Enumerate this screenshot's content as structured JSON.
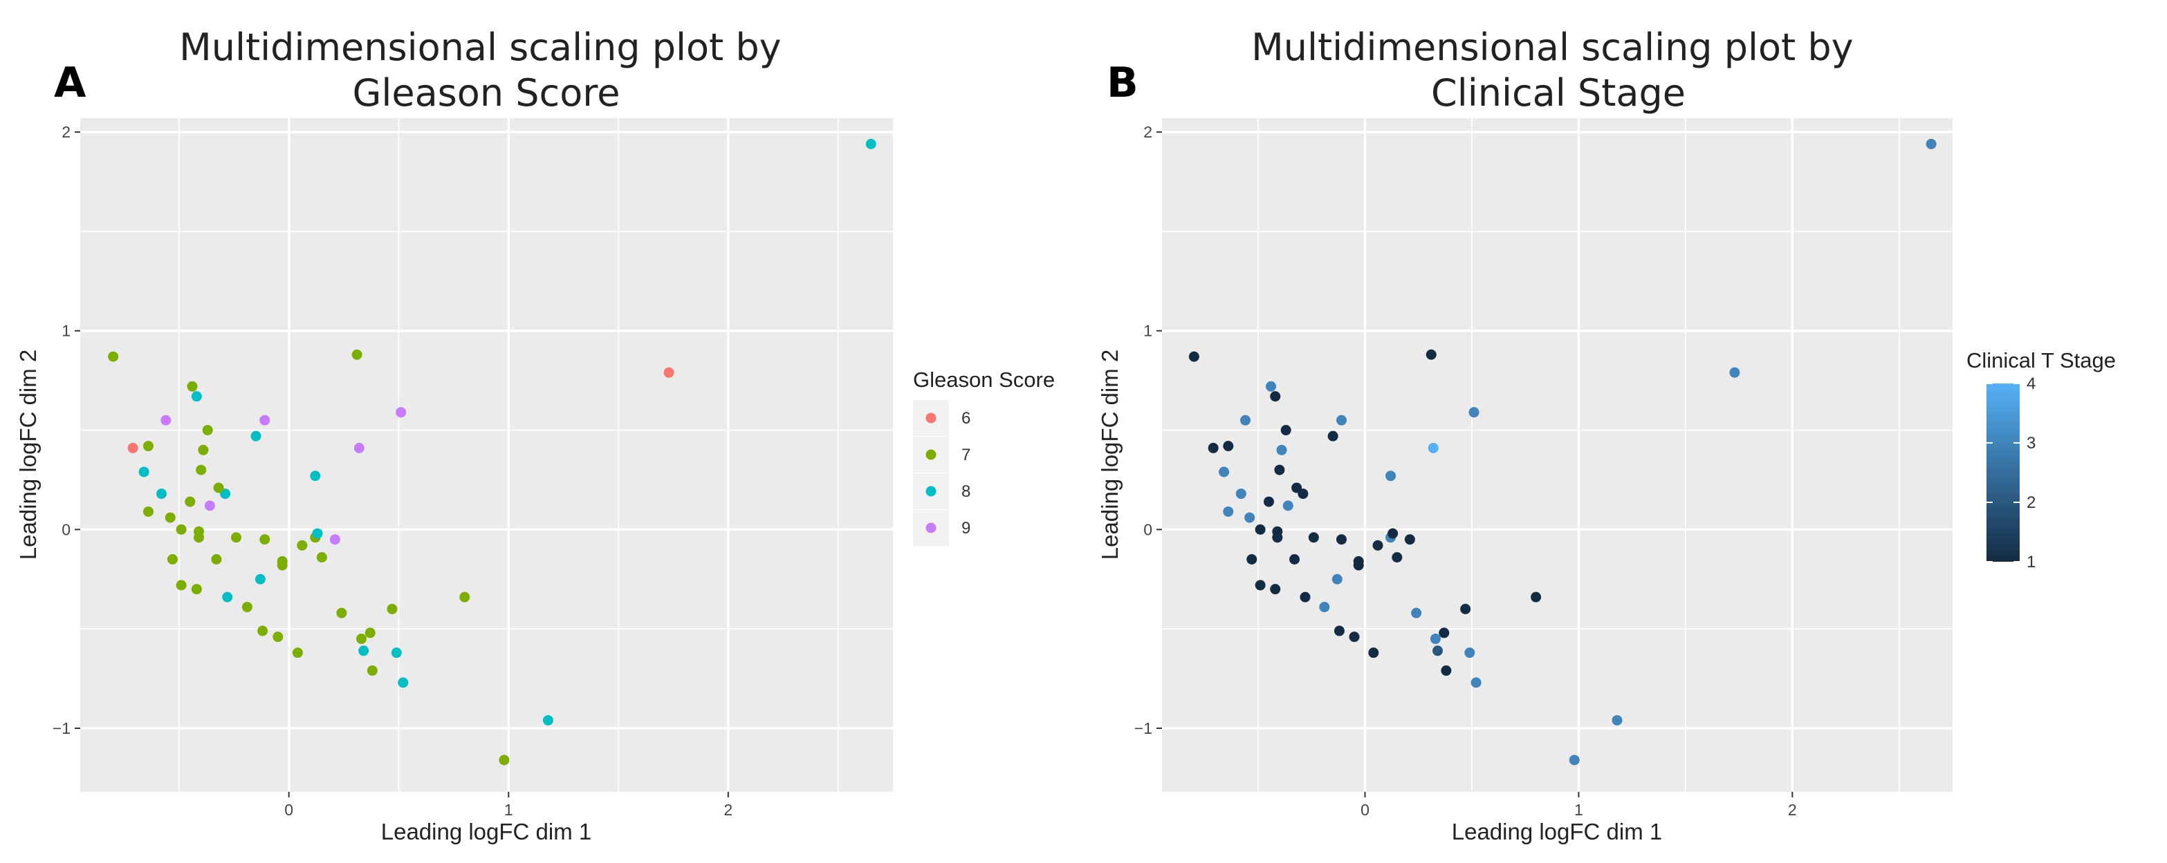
{
  "panels": [
    {
      "letter": "A",
      "title": "Multidimensional scaling plot by\nGleason Score"
    },
    {
      "letter": "B",
      "title": "Multidimensional scaling plot by\nClinical Stage"
    }
  ],
  "colors": {
    "panel_bg": "#ebebeb",
    "grid": "#ffffff",
    "gleason_6": "#F8766D",
    "gleason_7": "#7CAE00",
    "gleason_8": "#00BFC4",
    "gleason_9": "#C77CFF",
    "stage_low": "#132B43",
    "stage_high": "#56B1F7"
  },
  "chart_data": [
    {
      "type": "scatter",
      "title": "Multidimensional scaling plot by Gleason Score",
      "xlabel": "Leading logFC dim 1",
      "ylabel": "Leading logFC dim 2",
      "xlim": [
        -0.95,
        2.75
      ],
      "ylim": [
        -1.32,
        2.07
      ],
      "xticks": [
        0,
        1,
        2
      ],
      "yticks": [
        -1,
        0,
        1,
        2
      ],
      "xtick_labels": [
        "0",
        "1",
        "2"
      ],
      "ytick_labels": [
        "−1",
        "0",
        "1",
        "2"
      ],
      "grid": true,
      "legend": {
        "title": "Gleason Score",
        "position": "right",
        "categories": [
          "6",
          "7",
          "8",
          "9"
        ]
      },
      "points": [
        {
          "x": 2.65,
          "y": 1.94,
          "gleason": "8"
        },
        {
          "x": 1.73,
          "y": 0.79,
          "gleason": "6"
        },
        {
          "x": 1.18,
          "y": -0.96,
          "gleason": "8"
        },
        {
          "x": 0.98,
          "y": -1.16,
          "gleason": "7"
        },
        {
          "x": 0.8,
          "y": -0.34,
          "gleason": "7"
        },
        {
          "x": 0.51,
          "y": 0.59,
          "gleason": "9"
        },
        {
          "x": 0.52,
          "y": -0.77,
          "gleason": "8"
        },
        {
          "x": 0.49,
          "y": -0.62,
          "gleason": "8"
        },
        {
          "x": 0.47,
          "y": -0.4,
          "gleason": "7"
        },
        {
          "x": 0.38,
          "y": -0.71,
          "gleason": "7"
        },
        {
          "x": 0.37,
          "y": -0.52,
          "gleason": "7"
        },
        {
          "x": 0.33,
          "y": -0.55,
          "gleason": "7"
        },
        {
          "x": 0.34,
          "y": -0.61,
          "gleason": "8"
        },
        {
          "x": 0.32,
          "y": 0.41,
          "gleason": "9"
        },
        {
          "x": 0.31,
          "y": 0.88,
          "gleason": "7"
        },
        {
          "x": 0.24,
          "y": -0.42,
          "gleason": "7"
        },
        {
          "x": 0.21,
          "y": -0.05,
          "gleason": "9"
        },
        {
          "x": 0.15,
          "y": -0.14,
          "gleason": "7"
        },
        {
          "x": 0.12,
          "y": 0.27,
          "gleason": "8"
        },
        {
          "x": 0.12,
          "y": -0.04,
          "gleason": "7"
        },
        {
          "x": 0.13,
          "y": -0.02,
          "gleason": "8"
        },
        {
          "x": 0.06,
          "y": -0.08,
          "gleason": "7"
        },
        {
          "x": 0.04,
          "y": -0.62,
          "gleason": "7"
        },
        {
          "x": -0.03,
          "y": -0.18,
          "gleason": "7"
        },
        {
          "x": -0.03,
          "y": -0.16,
          "gleason": "7"
        },
        {
          "x": -0.05,
          "y": -0.54,
          "gleason": "7"
        },
        {
          "x": -0.11,
          "y": -0.05,
          "gleason": "7"
        },
        {
          "x": -0.11,
          "y": 0.55,
          "gleason": "9"
        },
        {
          "x": -0.12,
          "y": -0.51,
          "gleason": "7"
        },
        {
          "x": -0.13,
          "y": -0.25,
          "gleason": "8"
        },
        {
          "x": -0.15,
          "y": 0.47,
          "gleason": "8"
        },
        {
          "x": -0.19,
          "y": -0.39,
          "gleason": "7"
        },
        {
          "x": -0.24,
          "y": -0.04,
          "gleason": "7"
        },
        {
          "x": -0.28,
          "y": -0.34,
          "gleason": "8"
        },
        {
          "x": -0.29,
          "y": 0.18,
          "gleason": "8"
        },
        {
          "x": -0.32,
          "y": 0.21,
          "gleason": "7"
        },
        {
          "x": -0.33,
          "y": -0.15,
          "gleason": "7"
        },
        {
          "x": -0.36,
          "y": 0.12,
          "gleason": "9"
        },
        {
          "x": -0.37,
          "y": 0.5,
          "gleason": "7"
        },
        {
          "x": -0.39,
          "y": 0.4,
          "gleason": "7"
        },
        {
          "x": -0.4,
          "y": 0.3,
          "gleason": "7"
        },
        {
          "x": -0.41,
          "y": -0.01,
          "gleason": "7"
        },
        {
          "x": -0.41,
          "y": -0.04,
          "gleason": "7"
        },
        {
          "x": -0.42,
          "y": -0.3,
          "gleason": "7"
        },
        {
          "x": -0.42,
          "y": 0.67,
          "gleason": "8"
        },
        {
          "x": -0.44,
          "y": 0.72,
          "gleason": "7"
        },
        {
          "x": -0.45,
          "y": 0.14,
          "gleason": "7"
        },
        {
          "x": -0.49,
          "y": 0.0,
          "gleason": "7"
        },
        {
          "x": -0.49,
          "y": -0.28,
          "gleason": "7"
        },
        {
          "x": -0.53,
          "y": -0.15,
          "gleason": "7"
        },
        {
          "x": -0.54,
          "y": 0.06,
          "gleason": "7"
        },
        {
          "x": -0.56,
          "y": 0.55,
          "gleason": "9"
        },
        {
          "x": -0.58,
          "y": 0.18,
          "gleason": "8"
        },
        {
          "x": -0.64,
          "y": 0.42,
          "gleason": "7"
        },
        {
          "x": -0.64,
          "y": 0.09,
          "gleason": "7"
        },
        {
          "x": -0.66,
          "y": 0.29,
          "gleason": "8"
        },
        {
          "x": -0.71,
          "y": 0.41,
          "gleason": "6"
        },
        {
          "x": -0.8,
          "y": 0.87,
          "gleason": "7"
        }
      ]
    },
    {
      "type": "scatter",
      "title": "Multidimensional scaling plot by Clinical Stage",
      "xlabel": "Leading logFC dim 1",
      "ylabel": "Leading logFC dim 2",
      "xlim": [
        -0.95,
        2.75
      ],
      "ylim": [
        -1.32,
        2.07
      ],
      "xticks": [
        0,
        1,
        2
      ],
      "yticks": [
        -1,
        0,
        1,
        2
      ],
      "xtick_labels": [
        "0",
        "1",
        "2"
      ],
      "ytick_labels": [
        "−1",
        "0",
        "1",
        "2"
      ],
      "grid": true,
      "legend": {
        "title": "Clinical T Stage",
        "position": "right",
        "type": "colorbar",
        "range": [
          1,
          4
        ],
        "ticks": [
          "1",
          "2",
          "3",
          "4"
        ]
      },
      "points": [
        {
          "x": 2.65,
          "y": 1.94,
          "stage": 3
        },
        {
          "x": 1.73,
          "y": 0.79,
          "stage": 3
        },
        {
          "x": 1.18,
          "y": -0.96,
          "stage": 3
        },
        {
          "x": 0.98,
          "y": -1.16,
          "stage": 3
        },
        {
          "x": 0.8,
          "y": -0.34,
          "stage": 1
        },
        {
          "x": 0.51,
          "y": 0.59,
          "stage": 3
        },
        {
          "x": 0.52,
          "y": -0.77,
          "stage": 3
        },
        {
          "x": 0.49,
          "y": -0.62,
          "stage": 3
        },
        {
          "x": 0.47,
          "y": -0.4,
          "stage": 1
        },
        {
          "x": 0.38,
          "y": -0.71,
          "stage": 1
        },
        {
          "x": 0.37,
          "y": -0.52,
          "stage": 1
        },
        {
          "x": 0.33,
          "y": -0.55,
          "stage": 3
        },
        {
          "x": 0.34,
          "y": -0.61,
          "stage": 2
        },
        {
          "x": 0.32,
          "y": 0.41,
          "stage": 4
        },
        {
          "x": 0.31,
          "y": 0.88,
          "stage": 1
        },
        {
          "x": 0.24,
          "y": -0.42,
          "stage": 3
        },
        {
          "x": 0.21,
          "y": -0.05,
          "stage": 1
        },
        {
          "x": 0.15,
          "y": -0.14,
          "stage": 1
        },
        {
          "x": 0.12,
          "y": 0.27,
          "stage": 3
        },
        {
          "x": 0.12,
          "y": -0.04,
          "stage": 3
        },
        {
          "x": 0.13,
          "y": -0.02,
          "stage": 1
        },
        {
          "x": 0.06,
          "y": -0.08,
          "stage": 1
        },
        {
          "x": 0.04,
          "y": -0.62,
          "stage": 1
        },
        {
          "x": -0.03,
          "y": -0.18,
          "stage": 1
        },
        {
          "x": -0.03,
          "y": -0.16,
          "stage": 1
        },
        {
          "x": -0.05,
          "y": -0.54,
          "stage": 1
        },
        {
          "x": -0.11,
          "y": -0.05,
          "stage": 1
        },
        {
          "x": -0.11,
          "y": 0.55,
          "stage": 3
        },
        {
          "x": -0.12,
          "y": -0.51,
          "stage": 1
        },
        {
          "x": -0.13,
          "y": -0.25,
          "stage": 3
        },
        {
          "x": -0.15,
          "y": 0.47,
          "stage": 1
        },
        {
          "x": -0.19,
          "y": -0.39,
          "stage": 3
        },
        {
          "x": -0.24,
          "y": -0.04,
          "stage": 1
        },
        {
          "x": -0.28,
          "y": -0.34,
          "stage": 1
        },
        {
          "x": -0.29,
          "y": 0.18,
          "stage": 1
        },
        {
          "x": -0.32,
          "y": 0.21,
          "stage": 1
        },
        {
          "x": -0.33,
          "y": -0.15,
          "stage": 1
        },
        {
          "x": -0.36,
          "y": 0.12,
          "stage": 3
        },
        {
          "x": -0.37,
          "y": 0.5,
          "stage": 1
        },
        {
          "x": -0.39,
          "y": 0.4,
          "stage": 3
        },
        {
          "x": -0.4,
          "y": 0.3,
          "stage": 1
        },
        {
          "x": -0.41,
          "y": -0.01,
          "stage": 1
        },
        {
          "x": -0.41,
          "y": -0.04,
          "stage": 1
        },
        {
          "x": -0.42,
          "y": -0.3,
          "stage": 1
        },
        {
          "x": -0.42,
          "y": 0.67,
          "stage": 1
        },
        {
          "x": -0.44,
          "y": 0.72,
          "stage": 3
        },
        {
          "x": -0.45,
          "y": 0.14,
          "stage": 1
        },
        {
          "x": -0.49,
          "y": 0.0,
          "stage": 1
        },
        {
          "x": -0.49,
          "y": -0.28,
          "stage": 1
        },
        {
          "x": -0.53,
          "y": -0.15,
          "stage": 1
        },
        {
          "x": -0.54,
          "y": 0.06,
          "stage": 3
        },
        {
          "x": -0.56,
          "y": 0.55,
          "stage": 3
        },
        {
          "x": -0.58,
          "y": 0.18,
          "stage": 3
        },
        {
          "x": -0.64,
          "y": 0.42,
          "stage": 1
        },
        {
          "x": -0.64,
          "y": 0.09,
          "stage": 3
        },
        {
          "x": -0.66,
          "y": 0.29,
          "stage": 3
        },
        {
          "x": -0.71,
          "y": 0.41,
          "stage": 1
        },
        {
          "x": -0.8,
          "y": 0.87,
          "stage": 1
        }
      ]
    }
  ]
}
